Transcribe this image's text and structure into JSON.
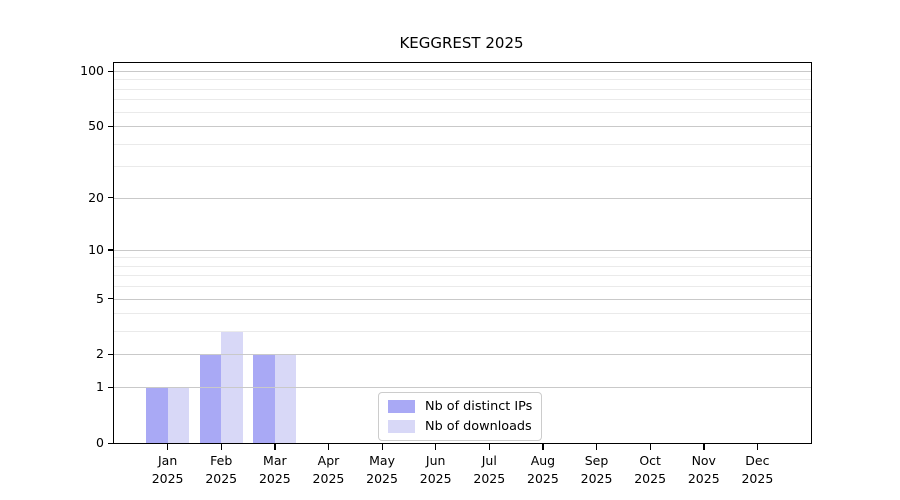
{
  "chart_data": {
    "type": "bar",
    "title": "KEGGREST 2025",
    "scale": "log1p",
    "background": "#ffffff",
    "categories": [
      {
        "month": "Jan",
        "year": "2025"
      },
      {
        "month": "Feb",
        "year": "2025"
      },
      {
        "month": "Mar",
        "year": "2025"
      },
      {
        "month": "Apr",
        "year": "2025"
      },
      {
        "month": "May",
        "year": "2025"
      },
      {
        "month": "Jun",
        "year": "2025"
      },
      {
        "month": "Jul",
        "year": "2025"
      },
      {
        "month": "Aug",
        "year": "2025"
      },
      {
        "month": "Sep",
        "year": "2025"
      },
      {
        "month": "Oct",
        "year": "2025"
      },
      {
        "month": "Nov",
        "year": "2025"
      },
      {
        "month": "Dec",
        "year": "2025"
      }
    ],
    "series": [
      {
        "name": "Nb of distinct IPs",
        "color": "#a9a9f5",
        "values": [
          1,
          2,
          2,
          0,
          0,
          0,
          0,
          0,
          0,
          0,
          0,
          0
        ]
      },
      {
        "name": "Nb of downloads",
        "color": "#d8d8f7",
        "values": [
          1,
          3,
          2,
          0,
          0,
          0,
          0,
          0,
          0,
          0,
          0,
          0
        ]
      }
    ],
    "y_ticks": [
      0,
      1,
      2,
      5,
      10,
      20,
      50,
      100
    ],
    "major_gridlines": [
      1,
      2,
      5,
      10,
      20,
      50,
      100
    ],
    "minor_gridlines": [
      3,
      4,
      6,
      7,
      8,
      9,
      30,
      40,
      60,
      70,
      80,
      90
    ],
    "ylim": [
      0,
      110
    ],
    "xlabel": "",
    "ylabel": "",
    "legend_position": "inside-bottom-center",
    "colors": {
      "axis": "#000000",
      "major_grid": "#c9c9c9",
      "minor_grid": "#eaeaea",
      "text": "#000000"
    }
  }
}
